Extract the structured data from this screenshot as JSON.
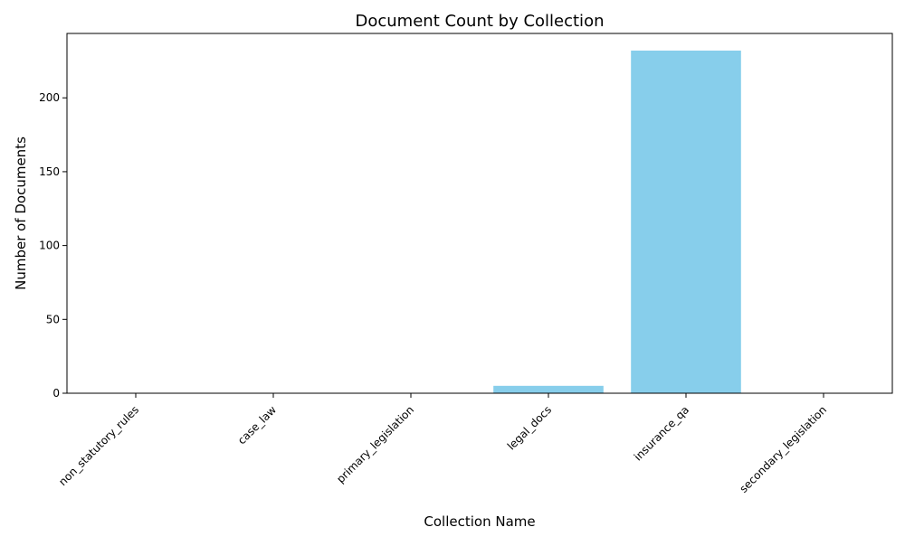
{
  "chart_data": {
    "type": "bar",
    "title": "Document Count by Collection",
    "xlabel": "Collection Name",
    "ylabel": "Number of Documents",
    "categories": [
      "non_statutory_rules",
      "case_law",
      "primary_legislation",
      "legal_docs",
      "insurance_qa",
      "secondary_legislation"
    ],
    "values": [
      0,
      0,
      0,
      5,
      232,
      0
    ],
    "ylim": [
      0,
      243.6
    ],
    "yticks": [
      0,
      50,
      100,
      150,
      200
    ],
    "grid": false,
    "bar_color": "#87CEEB"
  }
}
